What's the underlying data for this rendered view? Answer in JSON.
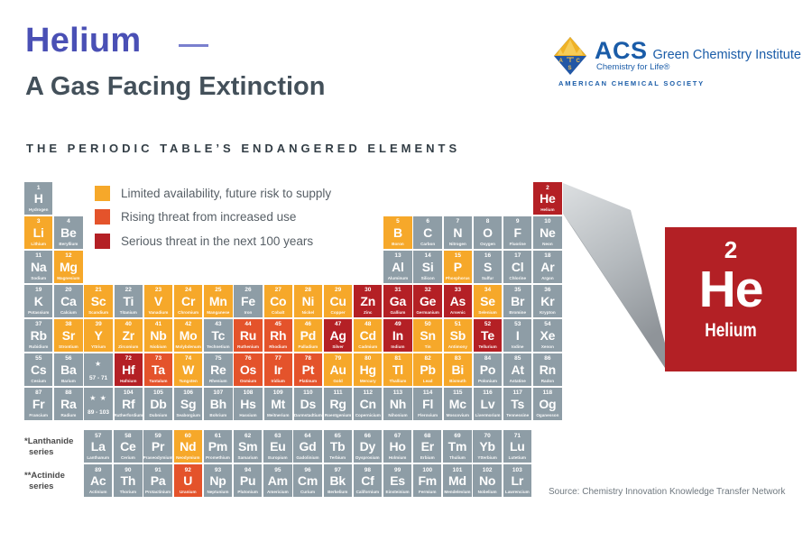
{
  "header": {
    "title": "Helium",
    "subtitle": "A Gas Facing Extinction",
    "section_title": "THE PERIODIC TABLE’S ENDANGERED ELEMENTS"
  },
  "logo": {
    "acronym": "ACS",
    "institute": "Green Chemistry Institute",
    "tagline": "Chemistry for Life®",
    "society": "AMERICAN CHEMICAL SOCIETY",
    "blue": "#1A5CA8",
    "gold": "#EFB226"
  },
  "legend": {
    "items": [
      {
        "key": "limited",
        "label": "Limited availability, future risk to supply",
        "color": "#F6A82A"
      },
      {
        "key": "rising",
        "label": "Rising threat from increased use",
        "color": "#E4532B"
      },
      {
        "key": "serious",
        "label": "Serious threat in the next 100 years",
        "color": "#B42025"
      }
    ]
  },
  "featured_element": {
    "number": "2",
    "symbol": "He",
    "name": "Helium"
  },
  "series_labels": {
    "lanthanide_line1": "*Lanthanide",
    "lanthanide_line2": "series",
    "actinide_line1": "**Actinide",
    "actinide_line2": "series"
  },
  "source": "Source: Chemistry Innovation Knowledge Transfer Network",
  "periodic_table": {
    "element_fields": [
      "symbol",
      "number",
      "name",
      "threat",
      "column"
    ],
    "threat_legend": {
      "g": "none",
      "o": "limited",
      "r": "rising",
      "s": "serious"
    },
    "threat_colors": {
      "g": "#8E9DA6",
      "o": "#F6A82A",
      "r": "#E4532B",
      "s": "#B42025"
    },
    "periods": [
      [
        [
          "H",
          1,
          "Hydrogen",
          "g",
          1
        ],
        [
          "He",
          2,
          "Helium",
          "s",
          18
        ]
      ],
      [
        [
          "Li",
          3,
          "Lithium",
          "o",
          1
        ],
        [
          "Be",
          4,
          "Beryllium",
          "g",
          2
        ],
        [
          "B",
          5,
          "Boron",
          "o",
          13
        ],
        [
          "C",
          6,
          "Carbon",
          "g",
          14
        ],
        [
          "N",
          7,
          "Nitrogen",
          "g",
          15
        ],
        [
          "O",
          8,
          "Oxygen",
          "g",
          16
        ],
        [
          "F",
          9,
          "Fluorine",
          "g",
          17
        ],
        [
          "Ne",
          10,
          "Neon",
          "g",
          18
        ]
      ],
      [
        [
          "Na",
          11,
          "Sodium",
          "g",
          1
        ],
        [
          "Mg",
          12,
          "Magnesium",
          "o",
          2
        ],
        [
          "Al",
          13,
          "Aluminum",
          "g",
          13
        ],
        [
          "Si",
          14,
          "Silicon",
          "g",
          14
        ],
        [
          "P",
          15,
          "Phosphorus",
          "o",
          15
        ],
        [
          "S",
          16,
          "Sulfur",
          "g",
          16
        ],
        [
          "Cl",
          17,
          "Chlorine",
          "g",
          17
        ],
        [
          "Ar",
          18,
          "Argon",
          "g",
          18
        ]
      ],
      [
        [
          "K",
          19,
          "Potassium",
          "g",
          1
        ],
        [
          "Ca",
          20,
          "Calcium",
          "g",
          2
        ],
        [
          "Sc",
          21,
          "Scandium",
          "o",
          3
        ],
        [
          "Ti",
          22,
          "Titanium",
          "g",
          4
        ],
        [
          "V",
          23,
          "Vanadium",
          "o",
          5
        ],
        [
          "Cr",
          24,
          "Chromium",
          "o",
          6
        ],
        [
          "Mn",
          25,
          "Manganese",
          "o",
          7
        ],
        [
          "Fe",
          26,
          "Iron",
          "g",
          8
        ],
        [
          "Co",
          27,
          "Cobalt",
          "o",
          9
        ],
        [
          "Ni",
          28,
          "Nickel",
          "o",
          10
        ],
        [
          "Cu",
          29,
          "Copper",
          "o",
          11
        ],
        [
          "Zn",
          30,
          "Zinc",
          "s",
          12
        ],
        [
          "Ga",
          31,
          "Gallium",
          "s",
          13
        ],
        [
          "Ge",
          32,
          "Germanium",
          "s",
          14
        ],
        [
          "As",
          33,
          "Arsenic",
          "s",
          15
        ],
        [
          "Se",
          34,
          "Selenium",
          "o",
          16
        ],
        [
          "Br",
          35,
          "Bromine",
          "g",
          17
        ],
        [
          "Kr",
          36,
          "Krypton",
          "g",
          18
        ]
      ],
      [
        [
          "Rb",
          37,
          "Rubidium",
          "g",
          1
        ],
        [
          "Sr",
          38,
          "Strontium",
          "o",
          2
        ],
        [
          "Y",
          39,
          "Yttrium",
          "o",
          3
        ],
        [
          "Zr",
          40,
          "Zirconium",
          "o",
          4
        ],
        [
          "Nb",
          41,
          "Niobium",
          "o",
          5
        ],
        [
          "Mo",
          42,
          "Molybdenum",
          "o",
          6
        ],
        [
          "Tc",
          43,
          "Technetium",
          "g",
          7
        ],
        [
          "Ru",
          44,
          "Ruthenium",
          "r",
          8
        ],
        [
          "Rh",
          45,
          "Rhodium",
          "r",
          9
        ],
        [
          "Pd",
          46,
          "Palladium",
          "o",
          10
        ],
        [
          "Ag",
          47,
          "Silver",
          "s",
          11
        ],
        [
          "Cd",
          48,
          "Cadmium",
          "o",
          12
        ],
        [
          "In",
          49,
          "Indium",
          "s",
          13
        ],
        [
          "Sn",
          50,
          "Tin",
          "o",
          14
        ],
        [
          "Sb",
          51,
          "Antimony",
          "o",
          15
        ],
        [
          "Te",
          52,
          "Tellurium",
          "s",
          16
        ],
        [
          "I",
          53,
          "Iodine",
          "g",
          17
        ],
        [
          "Xe",
          54,
          "Xenon",
          "g",
          18
        ]
      ],
      [
        [
          "Cs",
          55,
          "Cesium",
          "g",
          1
        ],
        [
          "Ba",
          56,
          "Barium",
          "g",
          2
        ],
        {
          "star": "★",
          "range": "57 - 71",
          "col": 3
        },
        [
          "Hf",
          72,
          "Hafnium",
          "s",
          4
        ],
        [
          "Ta",
          73,
          "Tantalum",
          "r",
          5
        ],
        [
          "W",
          74,
          "Tungsten",
          "o",
          6
        ],
        [
          "Re",
          75,
          "Rhenium",
          "g",
          7
        ],
        [
          "Os",
          76,
          "Osmium",
          "r",
          8
        ],
        [
          "Ir",
          77,
          "Iridium",
          "r",
          9
        ],
        [
          "Pt",
          78,
          "Platinum",
          "r",
          10
        ],
        [
          "Au",
          79,
          "Gold",
          "o",
          11
        ],
        [
          "Hg",
          80,
          "Mercury",
          "o",
          12
        ],
        [
          "Tl",
          81,
          "Thallium",
          "o",
          13
        ],
        [
          "Pb",
          82,
          "Lead",
          "o",
          14
        ],
        [
          "Bi",
          83,
          "Bismuth",
          "o",
          15
        ],
        [
          "Po",
          84,
          "Polonium",
          "g",
          16
        ],
        [
          "At",
          85,
          "Astatine",
          "g",
          17
        ],
        [
          "Rn",
          86,
          "Radon",
          "g",
          18
        ]
      ],
      [
        [
          "Fr",
          87,
          "Francium",
          "g",
          1
        ],
        [
          "Ra",
          88,
          "Radium",
          "g",
          2
        ],
        {
          "star": "★ ★",
          "range": "89 - 103",
          "col": 3
        },
        [
          "Rf",
          104,
          "Rutherfordium",
          "g",
          4
        ],
        [
          "Db",
          105,
          "Dubnium",
          "g",
          5
        ],
        [
          "Sg",
          106,
          "Seaborgium",
          "g",
          6
        ],
        [
          "Bh",
          107,
          "Bohrium",
          "g",
          7
        ],
        [
          "Hs",
          108,
          "Hassium",
          "g",
          8
        ],
        [
          "Mt",
          109,
          "Meitnerium",
          "g",
          9
        ],
        [
          "Ds",
          110,
          "Darmstadtium",
          "g",
          10
        ],
        [
          "Rg",
          111,
          "Roentgenium",
          "g",
          11
        ],
        [
          "Cn",
          112,
          "Copernicium",
          "g",
          12
        ],
        [
          "Nh",
          113,
          "Nihonium",
          "g",
          13
        ],
        [
          "Fl",
          114,
          "Flerovium",
          "g",
          14
        ],
        [
          "Mc",
          115,
          "Moscovium",
          "g",
          15
        ],
        [
          "Lv",
          116,
          "Livermorium",
          "g",
          16
        ],
        [
          "Ts",
          117,
          "Tennessine",
          "g",
          17
        ],
        [
          "Og",
          118,
          "Oganesson",
          "g",
          18
        ]
      ]
    ],
    "lanthanides": [
      [
        "La",
        57,
        "Lanthanum",
        "g"
      ],
      [
        "Ce",
        58,
        "Cerium",
        "g"
      ],
      [
        "Pr",
        59,
        "Praseodymium",
        "g"
      ],
      [
        "Nd",
        60,
        "Neodymium",
        "o"
      ],
      [
        "Pm",
        61,
        "Promethium",
        "g"
      ],
      [
        "Sm",
        62,
        "Samarium",
        "g"
      ],
      [
        "Eu",
        63,
        "Europium",
        "g"
      ],
      [
        "Gd",
        64,
        "Gadolinium",
        "g"
      ],
      [
        "Tb",
        65,
        "Terbium",
        "g"
      ],
      [
        "Dy",
        66,
        "Dysprosium",
        "g"
      ],
      [
        "Ho",
        67,
        "Holmium",
        "g"
      ],
      [
        "Er",
        68,
        "Erbium",
        "g"
      ],
      [
        "Tm",
        69,
        "Thulium",
        "g"
      ],
      [
        "Yb",
        70,
        "Ytterbium",
        "g"
      ],
      [
        "Lu",
        71,
        "Lutetium",
        "g"
      ]
    ],
    "actinides": [
      [
        "Ac",
        89,
        "Actinium",
        "g"
      ],
      [
        "Th",
        90,
        "Thorium",
        "g"
      ],
      [
        "Pa",
        91,
        "Protactinium",
        "g"
      ],
      [
        "U",
        92,
        "Uranium",
        "r"
      ],
      [
        "Np",
        93,
        "Neptunium",
        "g"
      ],
      [
        "Pu",
        94,
        "Plutonium",
        "g"
      ],
      [
        "Am",
        95,
        "Americium",
        "g"
      ],
      [
        "Cm",
        96,
        "Curium",
        "g"
      ],
      [
        "Bk",
        97,
        "Berkelium",
        "g"
      ],
      [
        "Cf",
        98,
        "Californium",
        "g"
      ],
      [
        "Es",
        99,
        "Einsteinium",
        "g"
      ],
      [
        "Fm",
        100,
        "Fermium",
        "g"
      ],
      [
        "Md",
        101,
        "Mendelevium",
        "g"
      ],
      [
        "No",
        102,
        "Nobelium",
        "g"
      ],
      [
        "Lr",
        103,
        "Lawrencium",
        "g"
      ]
    ]
  },
  "colors": {
    "title_blue": "#4A50B5",
    "subtitle_slate": "#43505A",
    "card_red": "#B32025",
    "cell_gray": "#8E9DA6"
  }
}
